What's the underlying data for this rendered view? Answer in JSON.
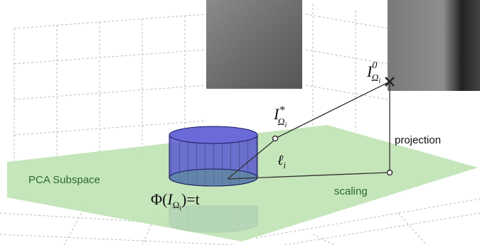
{
  "labels": {
    "pca_subspace": "PCA Subspace",
    "projection": "projection",
    "scaling": "scaling",
    "i_zero": {
      "base": "I",
      "sup": "0",
      "sub": "Ω",
      "subsub": "i"
    },
    "i_star": {
      "base": "I",
      "sup": "*",
      "sub": "Ω",
      "subsub": "i"
    },
    "ell": {
      "base": "ℓ",
      "sub": "i"
    },
    "phi": {
      "prefix": "Φ(",
      "base": "I",
      "sub": "Ω",
      "subsub": "i",
      "suffix": ")=t"
    }
  }
}
